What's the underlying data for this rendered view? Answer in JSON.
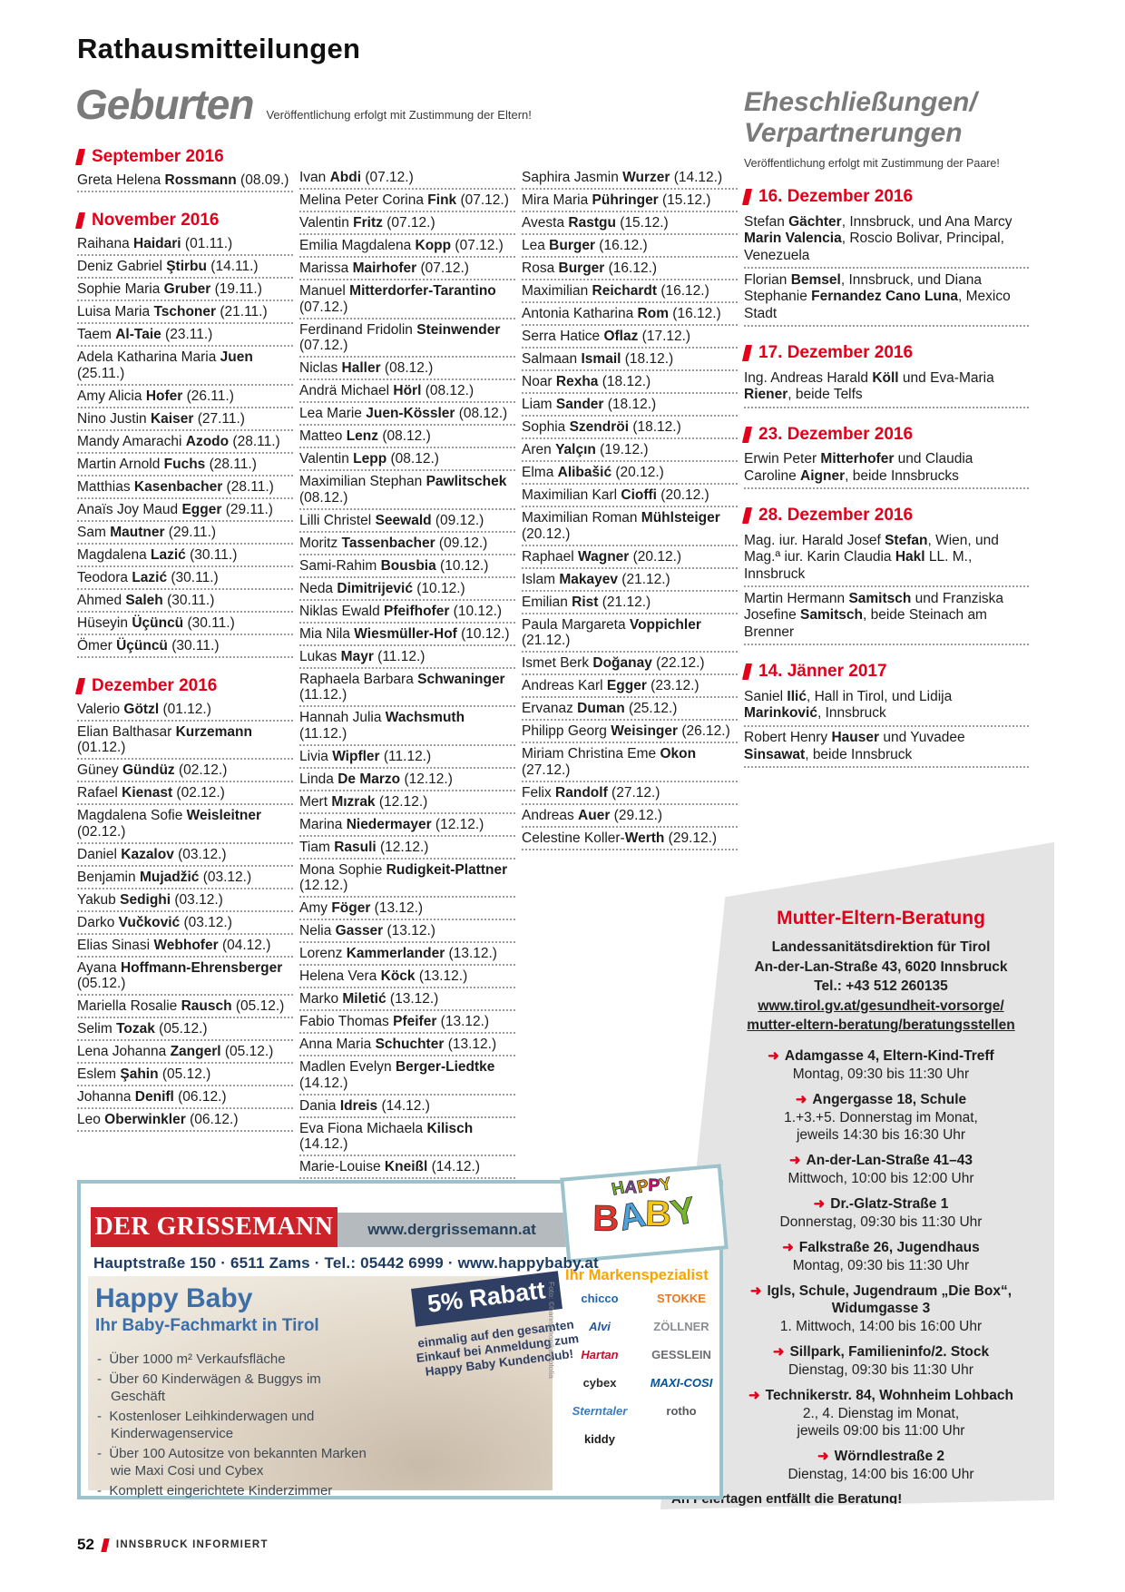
{
  "colors": {
    "red": "#e2001a",
    "gray": "#7a7a7a",
    "teal": "#9cc3cb",
    "navy": "#1d3c64",
    "adred": "#cc2229",
    "orange": "#f7a600",
    "boxgray": "#e4e4e4"
  },
  "page": {
    "title": "Rathausmitteilungen",
    "footer_page": "52",
    "footer_brand": "INNSBRUCK INFORMIERT"
  },
  "geburten": {
    "heading": "Geburten",
    "note": "Veröffentlichung erfolgt mit Zustimmung der Eltern!",
    "columns": [
      [
        {
          "header": "September 2016"
        },
        "Greta Helena **Rossmann** (08.09.)",
        {
          "header": "November 2016"
        },
        "Raihana **Haidari** (01.11.)",
        "Deniz Gabriel **Ştirbu** (14.11.)",
        "Sophie Maria **Gruber** (19.11.)",
        "Luisa Maria **Tschoner** (21.11.)",
        "Taem **Al-Taie** (23.11.)",
        "Adela Katharina Maria **Juen** (25.11.)",
        "Amy Alicia **Hofer** (26.11.)",
        "Nino Justin **Kaiser** (27.11.)",
        "Mandy Amarachi **Azodo** (28.11.)",
        "Martin Arnold **Fuchs** (28.11.)",
        "Matthias **Kasenbacher** (28.11.)",
        "Anaïs Joy Maud **Egger** (29.11.)",
        "Sam **Mautner** (29.11.)",
        "Magdalena **Lazić** (30.11.)",
        "Teodora **Lazić** (30.11.)",
        "Ahmed **Saleh** (30.11.)",
        "Hüseyin **Üçüncü** (30.11.)",
        "Ömer **Üçüncü** (30.11.)",
        {
          "header": "Dezember 2016"
        },
        "Valerio **Götzl** (01.12.)",
        "Elian Balthasar **Kurzemann** (01.12.)",
        "Güney **Gündüz** (02.12.)",
        "Rafael **Kienast** (02.12.)",
        "Magdalena Sofie **Weisleitner** (02.12.)",
        "Daniel **Kazalov** (03.12.)",
        "Benjamin **Mujadžić** (03.12.)",
        "Yakub **Sedighi** (03.12.)",
        "Darko **Vučković** (03.12.)",
        "Elias Sinasi **Webhofer** (04.12.)",
        "Ayana **Hoffmann-Ehrensberger** (05.12.)",
        "Mariella Rosalie **Rausch** (05.12.)",
        "Selim **Tozak** (05.12.)",
        "Lena Johanna **Zangerl** (05.12.)",
        "Eslem **Şahin** (05.12.)",
        "Johanna **Denifl** (06.12.)",
        "Leo **Oberwinkler** (06.12.)"
      ],
      [
        "Ivan **Abdi** (07.12.)",
        "Melina Peter Corina **Fink** (07.12.)",
        "Valentin **Fritz** (07.12.)",
        "Emilia Magdalena **Kopp** (07.12.)",
        "Marissa **Mairhofer** (07.12.)",
        "Manuel **Mitterdorfer-Tarantino** (07.12.)",
        "Ferdinand Fridolin **Steinwender** (07.12.)",
        "Niclas **Haller** (08.12.)",
        "Andrä Michael **Hörl** (08.12.)",
        "Lea Marie **Juen-Kössler** (08.12.)",
        "Matteo **Lenz** (08.12.)",
        "Valentin **Lepp** (08.12.)",
        "Maximilian Stephan **Pawlitschek** (08.12.)",
        "Lilli Christel **Seewald** (09.12.)",
        "Moritz **Tassenbacher** (09.12.)",
        "Sami-Rahim **Bousbia** (10.12.)",
        "Neda **Dimitrijević** (10.12.)",
        "Niklas Ewald **Pfeifhofer** (10.12.)",
        "Mia Nila **Wiesmüller-Hof** (10.12.)",
        "Lukas **Mayr** (11.12.)",
        "Raphaela Barbara **Schwaninger** (11.12.)",
        "Hannah Julia **Wachsmuth** (11.12.)",
        "Livia **Wipfler** (11.12.)",
        "Linda **De Marzo** (12.12.)",
        "Mert **Mızrak** (12.12.)",
        "Marina **Niedermayer** (12.12.)",
        "Tiam **Rasuli** (12.12.)",
        "Mona Sophie **Rudigkeit-Plattner** (12.12.)",
        "Amy **Föger** (13.12.)",
        "Nelia **Gasser** (13.12.)",
        "Lorenz **Kammerlander** (13.12.)",
        "Helena Vera **Köck** (13.12.)",
        "Marko **Miletić** (13.12.)",
        "Fabio Thomas **Pfeifer** (13.12.)",
        "Anna Maria **Schuchter** (13.12.)",
        "Madlen Evelyn **Berger-Liedtke** (14.12.)",
        "Dania **Idreis** (14.12.)",
        "Eva Fiona Michaela **Kilisch** (14.12.)",
        "Marie-Louise **Kneißl** (14.12.)"
      ],
      [
        "Saphira Jasmin **Wurzer** (14.12.)",
        "Mira Maria **Pühringer** (15.12.)",
        "Avesta **Rastgu** (15.12.)",
        "Lea **Burger** (16.12.)",
        "Rosa **Burger** (16.12.)",
        "Maximilian **Reichardt** (16.12.)",
        "Antonia Katharina **Rom** (16.12.)",
        "Serra Hatice **Oflaz** (17.12.)",
        "Salmaan **Ismail** (18.12.)",
        "Noar **Rexha** (18.12.)",
        "Liam **Sander** (18.12.)",
        "Sophia **Szendröi** (18.12.)",
        "Aren **Yalçın** (19.12.)",
        "Elma **Alibašić** (20.12.)",
        "Maximilian Karl **Cioffi** (20.12.)",
        "Maximilian Roman **Mühlsteiger** (20.12.)",
        "Raphael **Wagner** (20.12.)",
        "Islam **Makayev** (21.12.)",
        "Emilian **Rist** (21.12.)",
        "Paula Margareta **Voppichler** (21.12.)",
        "Ismet Berk **Doğanay** (22.12.)",
        "Andreas Karl **Egger** (23.12.)",
        "Ervanaz **Duman** (25.12.)",
        "Philipp Georg **Weisinger** (26.12.)",
        "Miriam Christina Eme **Okon** (27.12.)",
        "Felix **Randolf** (27.12.)",
        "Andreas **Auer** (29.12.)",
        "Celestine Koller-**Werth** (29.12.)"
      ]
    ]
  },
  "ehe": {
    "heading_line1": "Eheschließungen/",
    "heading_line2": "Verpartnerungen",
    "note": "Veröffentlichung erfolgt mit Zustimmung der Paare!",
    "groups": [
      {
        "date": "16. Dezember 2016",
        "entries": [
          "Stefan **Gächter**, Innsbruck, und Ana Marcy **Marin Valencia**, Roscio Bolivar, Principal, Venezuela",
          "Florian **Bemsel**, Innsbruck, und Diana Stephanie **Fernandez Cano Luna**, Mexico Stadt"
        ]
      },
      {
        "date": "17. Dezember 2016",
        "entries": [
          "Ing. Andreas Harald **Köll** und Eva-Maria **Riener**, beide Telfs"
        ]
      },
      {
        "date": "23. Dezember 2016",
        "entries": [
          "Erwin Peter **Mitterhofer** und Claudia Caroline **Aigner**, beide Innsbrucks"
        ]
      },
      {
        "date": "28. Dezember 2016",
        "entries": [
          "Mag. iur. Harald Josef **Stefan**, Wien, und Mag.ª iur. Karin Claudia **Hakl** LL. M., Innsbruck",
          "Martin Hermann **Samitsch** und Franziska Josefine **Samitsch**, beide Steinach am Brenner"
        ]
      },
      {
        "date": "14. Jänner 2017",
        "entries": [
          "Saniel **Ilić**, Hall in Tirol, und Lidija **Marinković**, Innsbruck",
          "Robert Henry **Hauser** und Yuvadee **Sinsawat**, beide Innsbruck"
        ]
      }
    ]
  },
  "beratung": {
    "title": "Mutter-Eltern-Beratung",
    "org": "Landessanitätsdirektion für Tirol",
    "address": "An-der-Lan-Straße 43, 6020 Innsbruck",
    "phone": "Tel.: +43 512 260135",
    "link_line1": "www.tirol.gv.at/gesundheit-vorsorge/",
    "link_line2": "mutter-eltern-beratung/beratungsstellen",
    "locations": [
      {
        "name": "Adamgasse 4, Eltern-Kind-Treff",
        "time": "Montag, 09:30 bis 11:30 Uhr"
      },
      {
        "name": "Angergasse 18, Schule",
        "time": "1.+3.+5. Donnerstag im Monat,\njeweils 14:30 bis 16:30 Uhr"
      },
      {
        "name": "An-der-Lan-Straße 41–43",
        "time": "Mittwoch, 10:00 bis 12:00 Uhr"
      },
      {
        "name": "Dr.-Glatz-Straße 1",
        "time": "Donnerstag, 09:30 bis 11:30 Uhr"
      },
      {
        "name": "Falkstraße 26, Jugendhaus",
        "time": "Montag, 09:30 bis 11:30 Uhr"
      },
      {
        "name": "Igls, Schule, Jugendraum „Die Box“, Widumgasse 3",
        "time": "1. Mittwoch, 14:00 bis 16:00 Uhr"
      },
      {
        "name": "Sillpark, Familieninfo/2. Stock",
        "time": "Dienstag, 09:30 bis 11:30 Uhr"
      },
      {
        "name": "Technikerstr. 84, Wohnheim Lohbach",
        "time": "2., 4. Dienstag im Monat,\njeweils 09:00 bis 11:00 Uhr"
      },
      {
        "name": "Wörndlestraße 2",
        "time": "Dienstag, 14:00 bis 16:00 Uhr"
      }
    ],
    "note": "An Feiertagen entfällt die Beratung!"
  },
  "ad": {
    "dealer": "DER GRISSEMANN",
    "dealer_url": "www.dergrissemann.at",
    "address_line": "Hauptstraße 150 · 6511 Zams · Tel.: 05442 6999 · www.happybaby.at",
    "logo_top": "HAPPY",
    "logo_top_colors": [
      "#76b82a",
      "#8d4a9e",
      "#f29100",
      "#e6007e",
      "#f5c518"
    ],
    "logo_bottom": "BABY",
    "logo_bottom_colors": [
      "#e6332a",
      "#4aa3dc",
      "#f5c518",
      "#76b82a"
    ],
    "headline": "Happy Baby",
    "subheadline": "Ihr Baby-Fachmarkt in Tirol",
    "bullets": [
      "Über 1000 m² Verkaufsfläche",
      "Über 60 Kinderwägen & Buggys im Geschäft",
      "Kostenloser Leihkinderwagen und Kinderwagenservice",
      "Über 100 Autositze von bekannten Marken wie Maxi Cosi und Cybex",
      "Komplett eingerichtete Kinderzimmer"
    ],
    "badge": "5% Rabatt",
    "badge_sub": "einmalig auf den gesamten\nEinkauf bei Anmeldung zum\nHappy Baby Kundenclub!",
    "brands_title": "Ihr Markenspezialist",
    "brands": [
      {
        "name": "chicco",
        "color": "#1b66b3"
      },
      {
        "name": "STOKKE",
        "color": "#e87722"
      },
      {
        "name": "Alvi",
        "color": "#2456a4",
        "italic": true
      },
      {
        "name": "ZÖLLNER",
        "color": "#8a8f94"
      },
      {
        "name": "Hartan",
        "color": "#c8102e",
        "italic": true
      },
      {
        "name": "GESSLEIN",
        "color": "#6d6e71"
      },
      {
        "name": "cybex",
        "color": "#2b2b2b"
      },
      {
        "name": "MAXI-COSI",
        "color": "#00529c",
        "italic": true
      },
      {
        "name": "Sterntaler",
        "color": "#3a7bbf",
        "italic": true
      },
      {
        "name": "rotho",
        "color": "#58595b"
      },
      {
        "name": "kiddy",
        "color": "#1d1d1b"
      }
    ],
    "photo_credit": "Foto: ©hannamonika/Fotolia"
  }
}
